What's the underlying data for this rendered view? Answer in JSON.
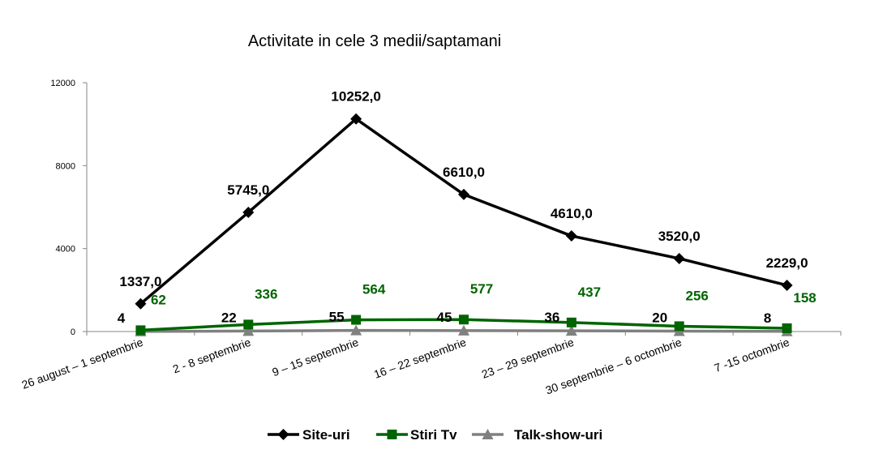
{
  "chart_data": {
    "type": "line",
    "title": "Activitate in cele 3 medii/saptamani",
    "xlabel": "",
    "ylabel": "",
    "ylim": [
      0,
      12000
    ],
    "yticks": [
      "0",
      "4000",
      "8000",
      "12000"
    ],
    "grid": false,
    "legend_position": "bottom",
    "categories": [
      "26 august – 1 septembrie",
      "2 - 8 septembrie",
      "9 – 15 septembrie",
      "16 – 22 septembrie",
      "23 – 29 septembrie",
      "30 septembrie – 6 octombrie",
      "7 -15 octombrie"
    ],
    "series": [
      {
        "name": "Site-uri",
        "color": "#000000",
        "marker": "diamond",
        "values": [
          1337,
          5745,
          10252,
          6610,
          4610,
          3520,
          2229
        ],
        "labels": [
          "1337,0",
          "5745,0",
          "10252,0",
          "6610,0",
          "4610,0",
          "3520,0",
          "2229,0"
        ]
      },
      {
        "name": "Stiri Tv",
        "color": "#006400",
        "marker": "square",
        "values": [
          62,
          336,
          564,
          577,
          437,
          256,
          158
        ],
        "labels": [
          "62",
          "336",
          "564",
          "577",
          "437",
          "256",
          "158"
        ]
      },
      {
        "name": "Talk-show-uri",
        "color": "#808080",
        "marker": "triangle",
        "values": [
          4,
          22,
          55,
          45,
          36,
          20,
          8
        ],
        "labels": [
          "4",
          "22",
          "55",
          "45",
          "36",
          "20",
          "8"
        ]
      }
    ]
  }
}
